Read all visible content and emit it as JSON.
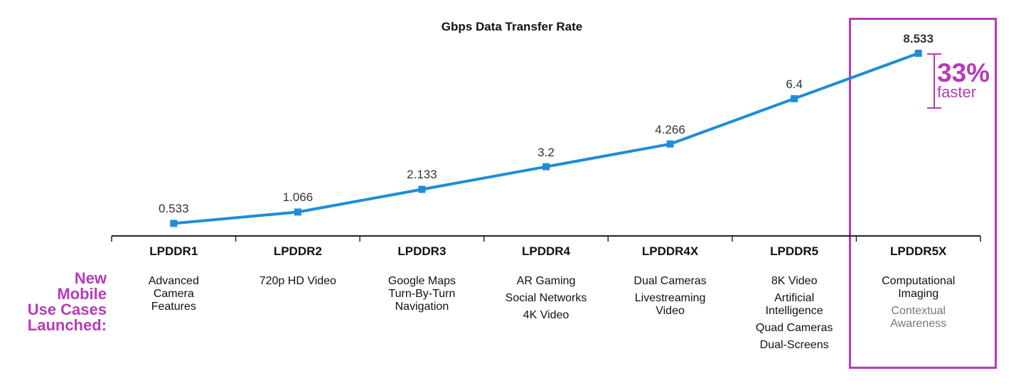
{
  "chart_data": {
    "type": "line",
    "title": "Gbps Data Transfer Rate",
    "categories": [
      "LPDDR1",
      "LPDDR2",
      "LPDDR3",
      "LPDDR4",
      "LPDDR4X",
      "LPDDR5",
      "LPDDR5X"
    ],
    "values": [
      0.533,
      1.066,
      2.133,
      3.2,
      4.266,
      6.4,
      8.533
    ],
    "value_labels": [
      "0.533",
      "1.066",
      "2.133",
      "3.2",
      "4.266",
      "6.4",
      "8.533"
    ],
    "ylim": [
      0,
      9
    ],
    "grid": false,
    "series_color": "#1f8dd6",
    "highlight_color": "#b73bb8",
    "highlight_category": "LPDDR5X",
    "callout": {
      "value": "33%",
      "text": "faster"
    },
    "use_cases_title": [
      "New",
      "Mobile",
      "Use Cases",
      "Launched:"
    ],
    "use_cases": [
      [
        "Advanced",
        "Camera",
        "Features"
      ],
      [
        "720p HD Video"
      ],
      [
        "Google Maps",
        "Turn-By-Turn",
        "Navigation"
      ],
      [
        "AR Gaming",
        "Social Networks",
        "4K Video"
      ],
      [
        "Dual Cameras",
        "Livestreaming",
        "Video"
      ],
      [
        "8K Video",
        "Artificial",
        "Intelligence",
        "Quad Cameras",
        "Dual-Screens"
      ],
      [
        "Computational",
        "Imaging",
        "Contextual",
        "Awareness"
      ]
    ]
  }
}
